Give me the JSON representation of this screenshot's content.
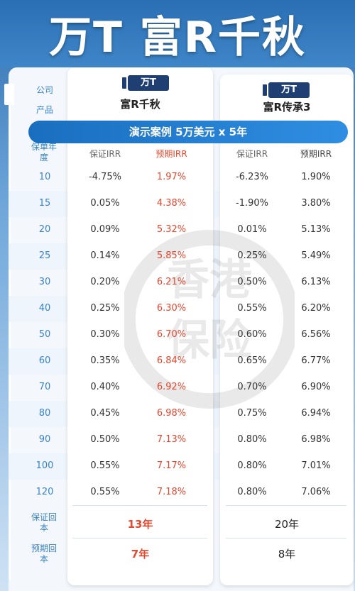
{
  "header": {
    "title": "万T 富R千秋"
  },
  "labels": {
    "company": "公司",
    "product": "产品",
    "year": "保单年度",
    "guaranteed_breakeven": "保证回本",
    "expected_breakeven": "预期回本"
  },
  "banner": "演示案例   5万美元 x 5年",
  "columns": {
    "guaranteed_irr": "保证IRR",
    "expected_irr": "预期IRR"
  },
  "plans": [
    {
      "company_logo": "万T",
      "product": "富R千秋"
    },
    {
      "company_logo": "万T",
      "product": "富R传承3"
    }
  ],
  "rows": [
    {
      "year": "10",
      "a_g": "-4.75%",
      "a_e": "1.97%",
      "b_g": "-6.23%",
      "b_e": "1.90%"
    },
    {
      "year": "15",
      "a_g": "0.05%",
      "a_e": "4.38%",
      "b_g": "-1.90%",
      "b_e": "3.80%"
    },
    {
      "year": "20",
      "a_g": "0.09%",
      "a_e": "5.32%",
      "b_g": "0.01%",
      "b_e": "5.13%"
    },
    {
      "year": "25",
      "a_g": "0.14%",
      "a_e": "5.85%",
      "b_g": "0.25%",
      "b_e": "5.49%"
    },
    {
      "year": "30",
      "a_g": "0.20%",
      "a_e": "6.21%",
      "b_g": "0.50%",
      "b_e": "6.13%"
    },
    {
      "year": "40",
      "a_g": "0.25%",
      "a_e": "6.30%",
      "b_g": "0.55%",
      "b_e": "6.20%"
    },
    {
      "year": "50",
      "a_g": "0.30%",
      "a_e": "6.70%",
      "b_g": "0.60%",
      "b_e": "6.56%"
    },
    {
      "year": "60",
      "a_g": "0.35%",
      "a_e": "6.84%",
      "b_g": "0.65%",
      "b_e": "6.77%"
    },
    {
      "year": "70",
      "a_g": "0.40%",
      "a_e": "6.92%",
      "b_g": "0.70%",
      "b_e": "6.90%"
    },
    {
      "year": "80",
      "a_g": "0.45%",
      "a_e": "6.98%",
      "b_g": "0.75%",
      "b_e": "6.94%"
    },
    {
      "year": "90",
      "a_g": "0.50%",
      "a_e": "7.13%",
      "b_g": "0.80%",
      "b_e": "6.98%"
    },
    {
      "year": "100",
      "a_g": "0.55%",
      "a_e": "7.17%",
      "b_g": "0.80%",
      "b_e": "7.01%"
    },
    {
      "year": "120",
      "a_g": "0.55%",
      "a_e": "7.18%",
      "b_g": "0.80%",
      "b_e": "7.06%"
    }
  ],
  "breakeven": {
    "guaranteed": {
      "a": "13年",
      "b": "20年"
    },
    "expected": {
      "a": "7年",
      "b": "8年"
    }
  },
  "watermark": "香港保险",
  "colors": {
    "accent": "#3b83c7",
    "highlight": "#e4482f",
    "logo": "#1f3f73"
  }
}
